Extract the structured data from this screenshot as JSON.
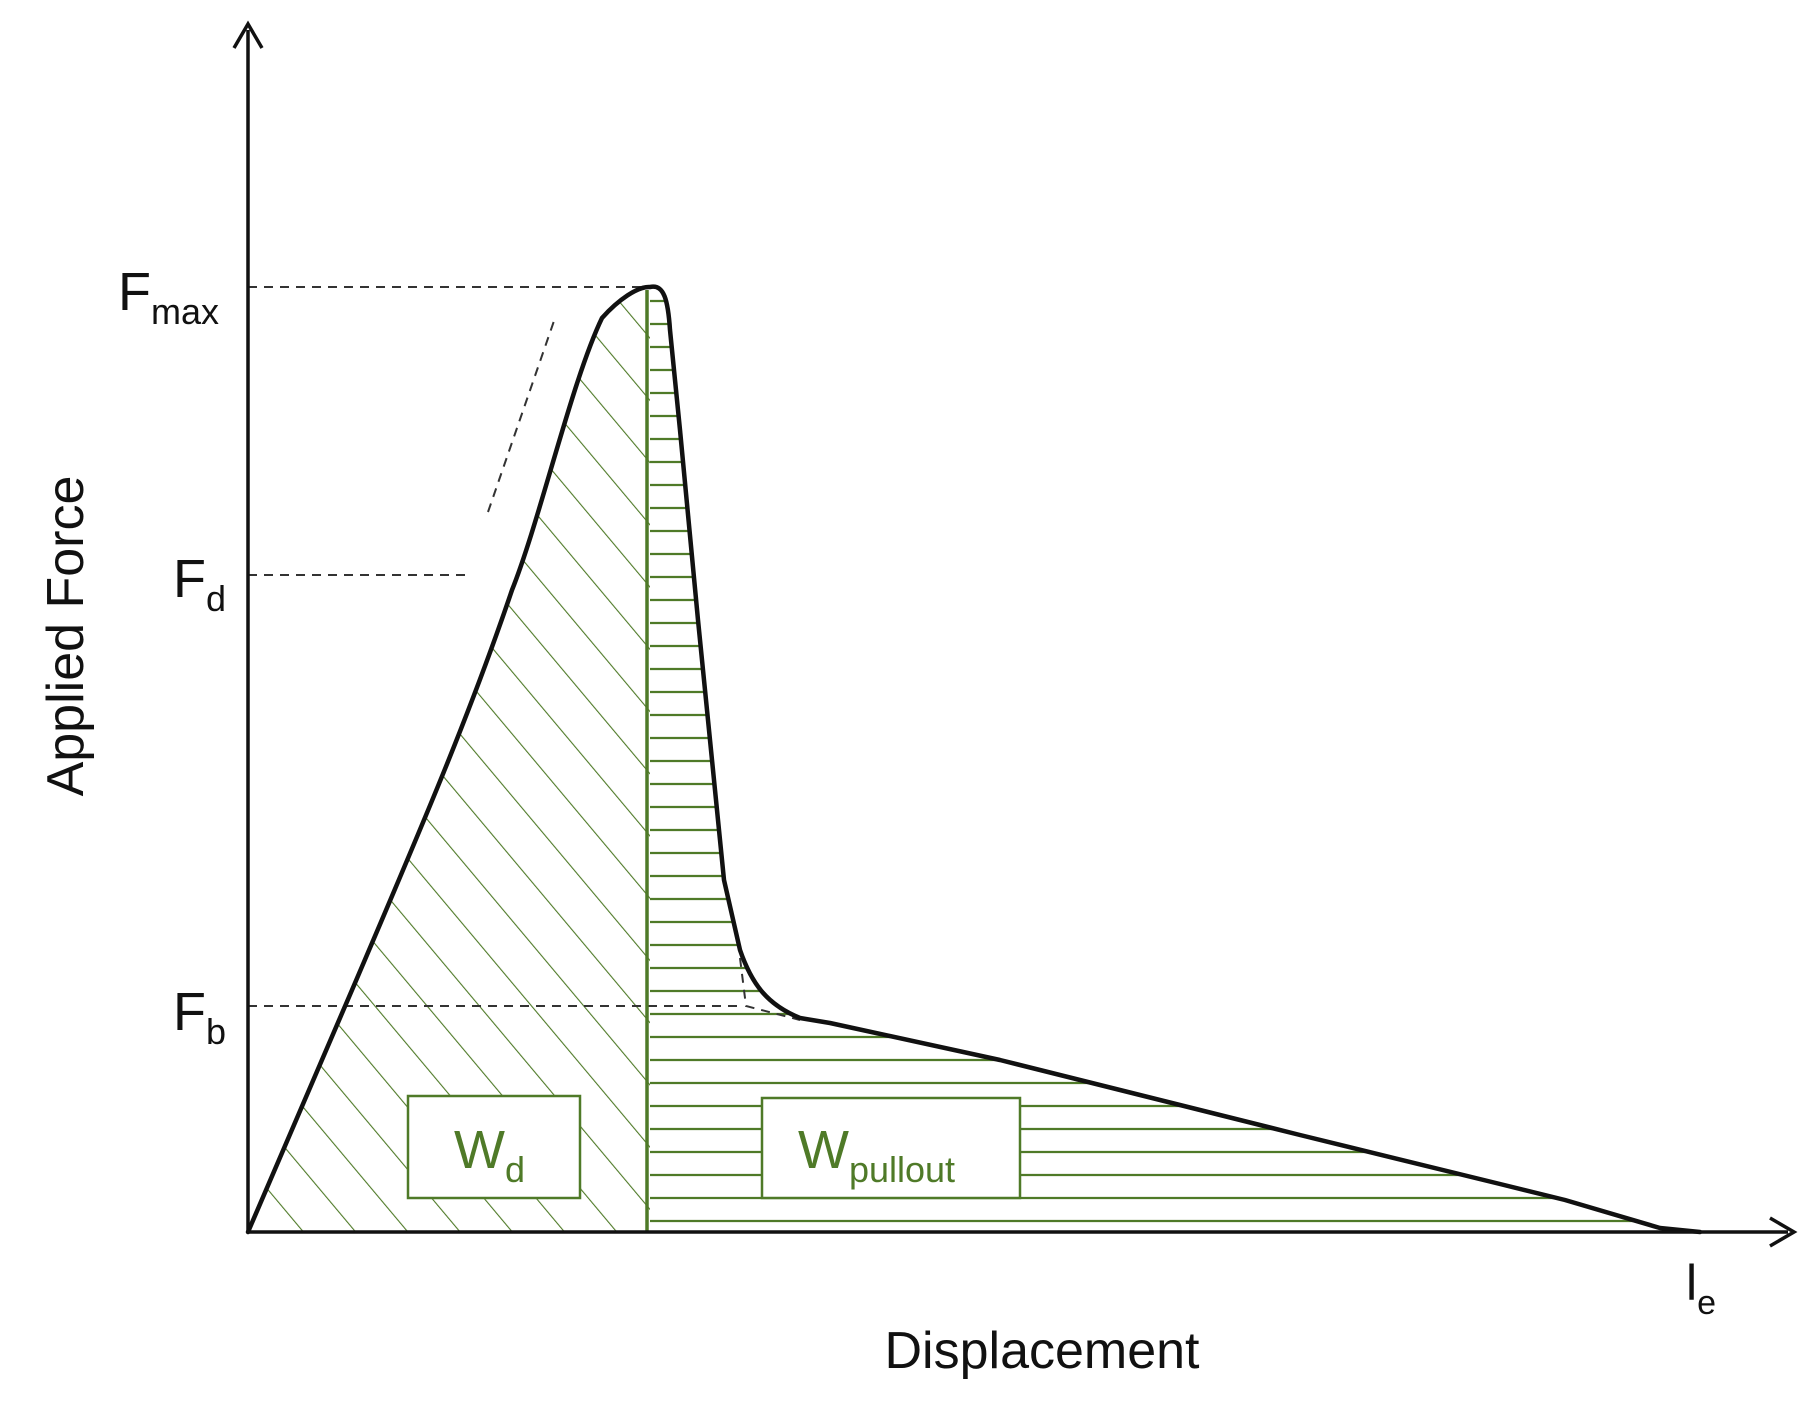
{
  "axes": {
    "y_label": "Applied Force",
    "x_label": "Displacement"
  },
  "force_levels": {
    "f_max": {
      "main": "F",
      "sub": "max"
    },
    "f_d": {
      "main": "F",
      "sub": "d"
    },
    "f_b": {
      "main": "F",
      "sub": "b"
    }
  },
  "end_marker": {
    "main": "l",
    "sub": "e"
  },
  "work_regions": {
    "w_d": {
      "main": "W",
      "sub": "d"
    },
    "w_pullout": {
      "main": "W",
      "sub": "pullout"
    }
  },
  "colors": {
    "curve": "#111111",
    "hatch": "#4f7a28",
    "label_green": "#4f7a28",
    "dashed": "#333333"
  }
}
